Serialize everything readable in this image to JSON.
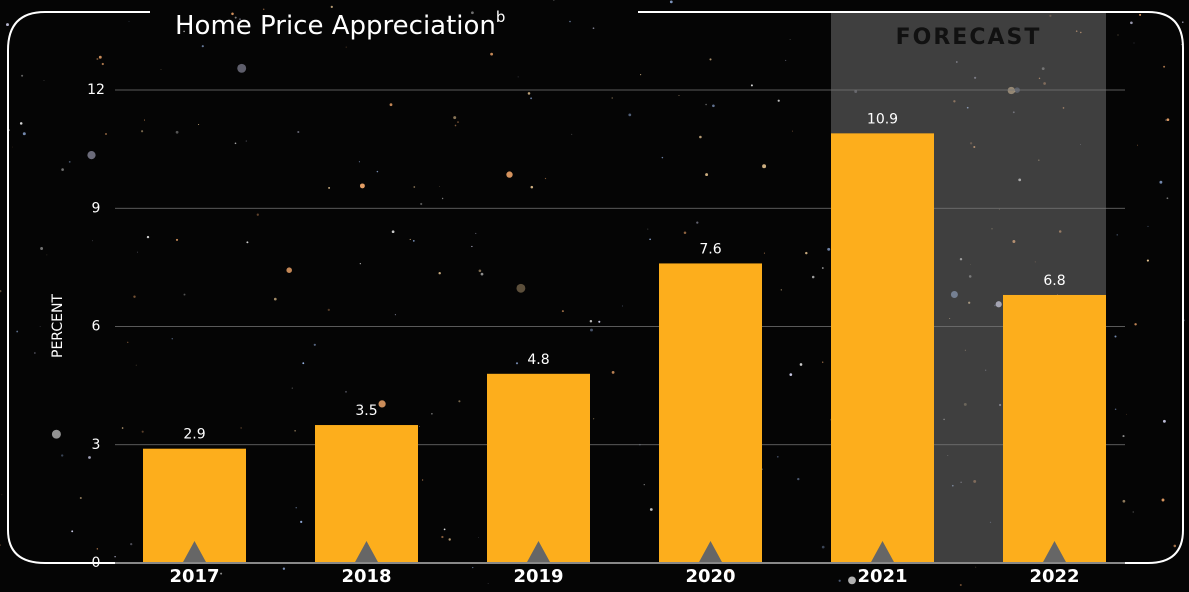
{
  "chart_data": {
    "type": "bar",
    "title": "Home Price Appreciation",
    "title_superscript": "b",
    "y_axis_label": "PERCENT",
    "categories": [
      "2017",
      "2018",
      "2019",
      "2020",
      "2021",
      "2022"
    ],
    "values": [
      2.9,
      3.5,
      4.8,
      7.6,
      10.9,
      6.8
    ],
    "color": "#fdae1c",
    "ylim": [
      0,
      12
    ],
    "yticks": [
      0,
      3,
      6,
      9,
      12
    ],
    "grid": true,
    "shaded_region": {
      "label": "FORECAST",
      "from": "2021",
      "to": "2022"
    }
  }
}
